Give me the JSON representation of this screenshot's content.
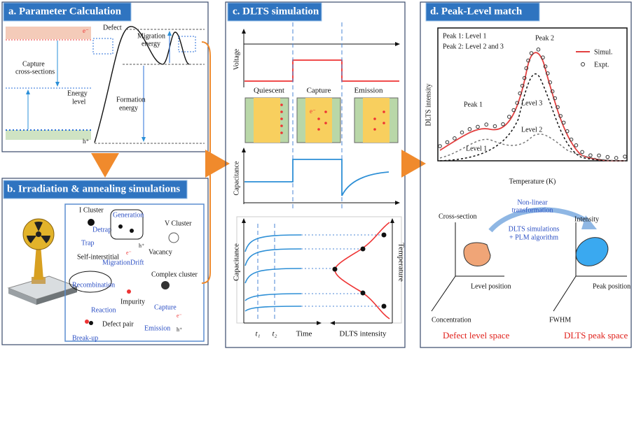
{
  "panel_a": {
    "title": "a. Parameter Calculation",
    "defect": "Defect",
    "migration_energy": [
      "Migration",
      "energy"
    ],
    "capture_cross_sections": [
      "Capture",
      "cross-sections"
    ],
    "energy_level": [
      "Energy",
      "level"
    ],
    "formation_energy": [
      "Formation",
      "energy"
    ],
    "electron": "e⁻",
    "hole": "h⁺"
  },
  "panel_b": {
    "title": "b. Irradiation & annealing simulations",
    "i_cluster": "I Cluster",
    "generation": "Generation",
    "v_cluster": "V Cluster",
    "detrap": "Detrap",
    "trap": "Trap",
    "self_interstitial": "Self-interstitial",
    "migration": "Migration",
    "drift": "Drift",
    "vacancy": "Vacancy",
    "recombination": "Recombination",
    "complex_cluster": "Complex cluster",
    "impurity": "Impurity",
    "reaction": "Reaction",
    "defect_pair": "Defect pair",
    "break_up": "Break-up",
    "capture": "Capture",
    "emission": "Emission",
    "electron": "e⁻",
    "hole": "h⁺"
  },
  "panel_c": {
    "title": "c. DLTS simulation",
    "voltage": "Voltage",
    "quiescent": "Quiescent",
    "capture": "Capture",
    "emission": "Emission",
    "capacitance_top": "Capacitance",
    "capacitance_bottom": "Capacitance",
    "temperature": "Temperature",
    "t1": "t₁",
    "t2": "t₂",
    "time": "Time",
    "dlts_intensity": "DLTS intensity",
    "electron": "e⁻"
  },
  "panel_d": {
    "title": "d. Peak-Level match",
    "peak1_note": "Peak 1: Level 1",
    "peak2_note": "Peak 2: Level 2 and 3",
    "peak2": "Peak 2",
    "simul": "Simul.",
    "expt": "Expt.",
    "peak1": "Peak 1",
    "level3": "Level 3",
    "level1": "Level 1",
    "level2": "Level 2",
    "y_label": "DLTS intensity",
    "x_label": "Temperature (K)",
    "transform": [
      "Non-linear",
      "transformation"
    ],
    "algorithm": [
      "DLTS simulations",
      "+ PLM algorithm"
    ],
    "cross_section": "Cross-section",
    "intensity": "Intensity",
    "level_position": "Level position",
    "peak_position": "Peak position",
    "concentration": "Concentration",
    "fwhm": "FWHM",
    "defect_space": "Defect level space",
    "peak_space": "DLTS peak space"
  }
}
